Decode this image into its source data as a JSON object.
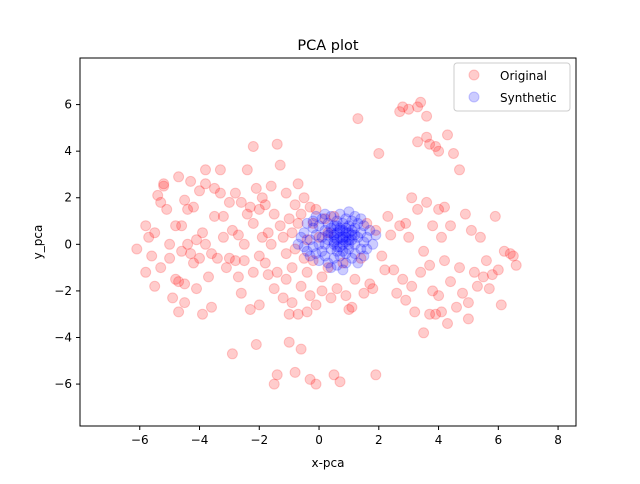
{
  "chart_data": {
    "type": "scatter",
    "title": "PCA plot",
    "xlabel": "x-pca",
    "ylabel": "y_pca",
    "xlim": [
      -8,
      8.6
    ],
    "ylim": [
      -7.8,
      8.0
    ],
    "xticks": [
      -6,
      -4,
      -2,
      0,
      2,
      4,
      6,
      8
    ],
    "yticks": [
      -6,
      -4,
      -2,
      0,
      2,
      4,
      6
    ],
    "grid": false,
    "legend_position": "top-right",
    "series": [
      {
        "name": "Original",
        "color": "#ff0000",
        "alpha": 0.2,
        "points": [
          [
            -6.1,
            -0.2
          ],
          [
            -5.8,
            0.8
          ],
          [
            -5.8,
            -1.2
          ],
          [
            -5.7,
            0.3
          ],
          [
            -5.6,
            -0.5
          ],
          [
            -5.5,
            0.5
          ],
          [
            -5.5,
            -1.8
          ],
          [
            -5.4,
            2.1
          ],
          [
            -5.3,
            -1.0
          ],
          [
            -5.3,
            1.8
          ],
          [
            -5.2,
            2.6
          ],
          [
            -5.2,
            2.5
          ],
          [
            -5.1,
            1.5
          ],
          [
            -5.0,
            0.0
          ],
          [
            -5.0,
            -0.6
          ],
          [
            -4.9,
            -2.3
          ],
          [
            -4.8,
            0.8
          ],
          [
            -4.8,
            -1.5
          ],
          [
            -4.7,
            2.9
          ],
          [
            -4.7,
            -1.6
          ],
          [
            -4.7,
            -2.9
          ],
          [
            -4.6,
            0.8
          ],
          [
            -4.6,
            -0.3
          ],
          [
            -4.5,
            -1.7
          ],
          [
            -4.5,
            -2.5
          ],
          [
            -4.5,
            1.9
          ],
          [
            -4.4,
            1.5
          ],
          [
            -4.4,
            0.0
          ],
          [
            -4.3,
            2.7
          ],
          [
            -4.3,
            -0.4
          ],
          [
            -4.2,
            1.6
          ],
          [
            -4.2,
            -0.8
          ],
          [
            -4.1,
            0.2
          ],
          [
            -4.1,
            -1.9
          ],
          [
            -4.0,
            2.3
          ],
          [
            -4.0,
            -0.6
          ],
          [
            -3.9,
            0.5
          ],
          [
            -3.9,
            -3.0
          ],
          [
            -3.8,
            0.0
          ],
          [
            -3.8,
            3.2
          ],
          [
            -3.8,
            2.6
          ],
          [
            -3.7,
            -1.4
          ],
          [
            -3.6,
            -0.4
          ],
          [
            -3.6,
            -2.7
          ],
          [
            -3.5,
            1.2
          ],
          [
            -3.5,
            2.4
          ],
          [
            -3.4,
            -0.6
          ],
          [
            -3.3,
            3.2
          ],
          [
            -3.3,
            2.2
          ],
          [
            -3.2,
            1.2
          ],
          [
            -3.2,
            0.3
          ],
          [
            -3.1,
            -1.0
          ],
          [
            -3.0,
            1.8
          ],
          [
            -3.0,
            -0.6
          ],
          [
            -2.9,
            -4.7
          ],
          [
            -2.9,
            0.6
          ],
          [
            -2.8,
            2.2
          ],
          [
            -2.8,
            -0.7
          ],
          [
            -2.7,
            -1.4
          ],
          [
            -2.7,
            0.4
          ],
          [
            -2.6,
            1.8
          ],
          [
            -2.6,
            -2.1
          ],
          [
            -2.5,
            0.0
          ],
          [
            -2.5,
            -0.7
          ],
          [
            -2.4,
            3.2
          ],
          [
            -2.4,
            1.3
          ],
          [
            -2.3,
            1.6
          ],
          [
            -2.3,
            -2.8
          ],
          [
            -2.2,
            4.2
          ],
          [
            -2.2,
            0.9
          ],
          [
            -2.2,
            -1.2
          ],
          [
            -2.1,
            -4.3
          ],
          [
            -2.1,
            2.4
          ],
          [
            -2.0,
            -0.5
          ],
          [
            -2.0,
            1.5
          ],
          [
            -2.0,
            -2.6
          ],
          [
            -1.9,
            0.3
          ],
          [
            -1.9,
            2.0
          ],
          [
            -1.8,
            -0.8
          ],
          [
            -1.8,
            1.7
          ],
          [
            -1.7,
            0.5
          ],
          [
            -1.7,
            -1.3
          ],
          [
            -1.6,
            2.5
          ],
          [
            -1.6,
            0.0
          ],
          [
            -1.5,
            1.3
          ],
          [
            -1.5,
            -1.9
          ],
          [
            -1.5,
            -6.0
          ],
          [
            -1.4,
            -5.6
          ],
          [
            -1.4,
            4.3
          ],
          [
            -1.4,
            -1.2
          ],
          [
            -1.3,
            0.8
          ],
          [
            -1.3,
            3.4
          ],
          [
            -1.2,
            -2.3
          ],
          [
            -1.2,
            0.3
          ],
          [
            -1.1,
            -0.4
          ],
          [
            -1.1,
            2.2
          ],
          [
            -1.1,
            -1.5
          ],
          [
            -1.0,
            -4.2
          ],
          [
            -1.0,
            -3.0
          ],
          [
            -1.0,
            1.1
          ],
          [
            -0.9,
            0.5
          ],
          [
            -0.9,
            -1.0
          ],
          [
            -0.9,
            -2.5
          ],
          [
            -0.8,
            1.7
          ],
          [
            -0.8,
            -0.2
          ],
          [
            -0.8,
            -5.5
          ],
          [
            -0.7,
            2.6
          ],
          [
            -0.7,
            -3.0
          ],
          [
            -0.7,
            0.9
          ],
          [
            -0.6,
            1.3
          ],
          [
            -0.6,
            -1.8
          ],
          [
            -0.6,
            -4.5
          ],
          [
            -0.5,
            -0.6
          ],
          [
            -0.5,
            2.0
          ],
          [
            -0.4,
            0.2
          ],
          [
            -0.4,
            -1.2
          ],
          [
            -0.4,
            -2.9
          ],
          [
            -0.3,
            1.6
          ],
          [
            -0.3,
            -2.2
          ],
          [
            -0.3,
            -5.8
          ],
          [
            -0.2,
            0.9
          ],
          [
            -0.2,
            -0.7
          ],
          [
            -0.1,
            -6.0
          ],
          [
            -0.1,
            -2.6
          ],
          [
            -0.1,
            1.5
          ],
          [
            0.0,
            0.3
          ],
          [
            0.1,
            -1.4
          ],
          [
            0.1,
            -2.0
          ],
          [
            0.2,
            1.1
          ],
          [
            0.3,
            -1.0
          ],
          [
            0.3,
            0.5
          ],
          [
            0.4,
            -2.3
          ],
          [
            0.5,
            1.2
          ],
          [
            0.5,
            -5.6
          ],
          [
            0.6,
            -1.9
          ],
          [
            0.7,
            -5.9
          ],
          [
            0.8,
            -0.8
          ],
          [
            0.9,
            -2.2
          ],
          [
            1.0,
            -2.8
          ],
          [
            1.1,
            -2.7
          ],
          [
            1.2,
            -1.5
          ],
          [
            1.3,
            5.4
          ],
          [
            1.4,
            -0.6
          ],
          [
            1.5,
            -2.1
          ],
          [
            1.6,
            0.9
          ],
          [
            1.7,
            -1.7
          ],
          [
            1.8,
            -1.9
          ],
          [
            1.9,
            -5.6
          ],
          [
            1.9,
            0.6
          ],
          [
            2.0,
            3.9
          ],
          [
            2.1,
            -0.5
          ],
          [
            2.2,
            -1.1
          ],
          [
            2.3,
            1.2
          ],
          [
            2.4,
            0.4
          ],
          [
            2.5,
            -1.1
          ],
          [
            2.6,
            -2.1
          ],
          [
            2.7,
            5.7
          ],
          [
            2.7,
            0.8
          ],
          [
            2.8,
            5.9
          ],
          [
            2.8,
            -1.5
          ],
          [
            2.9,
            0.9
          ],
          [
            2.9,
            -2.4
          ],
          [
            3.0,
            5.8
          ],
          [
            3.0,
            0.3
          ],
          [
            3.1,
            2.0
          ],
          [
            3.1,
            -1.8
          ],
          [
            3.2,
            -2.9
          ],
          [
            3.3,
            5.9
          ],
          [
            3.3,
            4.4
          ],
          [
            3.3,
            1.5
          ],
          [
            3.4,
            6.1
          ],
          [
            3.4,
            -1.2
          ],
          [
            3.5,
            -0.3
          ],
          [
            3.5,
            -3.8
          ],
          [
            3.6,
            5.5
          ],
          [
            3.6,
            4.6
          ],
          [
            3.6,
            1.8
          ],
          [
            3.7,
            -3.0
          ],
          [
            3.7,
            -0.9
          ],
          [
            3.7,
            4.3
          ],
          [
            3.8,
            0.8
          ],
          [
            3.8,
            -2.0
          ],
          [
            3.9,
            4.2
          ],
          [
            3.9,
            -3.0
          ],
          [
            4.0,
            1.5
          ],
          [
            4.0,
            4.0
          ],
          [
            4.0,
            -2.2
          ],
          [
            4.1,
            0.3
          ],
          [
            4.1,
            -2.9
          ],
          [
            4.2,
            1.6
          ],
          [
            4.2,
            -0.7
          ],
          [
            4.3,
            4.7
          ],
          [
            4.3,
            -3.4
          ],
          [
            4.4,
            0.8
          ],
          [
            4.4,
            -1.6
          ],
          [
            4.5,
            3.9
          ],
          [
            4.6,
            -2.7
          ],
          [
            4.7,
            -1.0
          ],
          [
            4.7,
            3.2
          ],
          [
            4.8,
            -2.1
          ],
          [
            4.9,
            1.3
          ],
          [
            5.0,
            -3.2
          ],
          [
            5.0,
            -2.5
          ],
          [
            5.1,
            0.6
          ],
          [
            5.2,
            -1.2
          ],
          [
            5.3,
            -1.8
          ],
          [
            5.4,
            0.3
          ],
          [
            5.5,
            -1.4
          ],
          [
            5.6,
            -0.7
          ],
          [
            5.7,
            -1.9
          ],
          [
            5.8,
            -1.3
          ],
          [
            5.9,
            1.2
          ],
          [
            6.0,
            -1.1
          ],
          [
            6.1,
            -2.6
          ],
          [
            6.2,
            -0.3
          ],
          [
            6.4,
            -0.4
          ],
          [
            6.5,
            -0.5
          ],
          [
            6.6,
            -0.9
          ]
        ]
      },
      {
        "name": "Synthetic",
        "color": "#0000ff",
        "alpha": 0.2,
        "points": [
          [
            -0.7,
            0.0
          ],
          [
            -0.6,
            0.3
          ],
          [
            -0.5,
            -0.1
          ],
          [
            -0.5,
            0.5
          ],
          [
            -0.4,
            0.9
          ],
          [
            -0.4,
            -0.3
          ],
          [
            -0.3,
            0.2
          ],
          [
            -0.3,
            -0.5
          ],
          [
            -0.2,
            0.7
          ],
          [
            -0.2,
            1.0
          ],
          [
            -0.2,
            -0.1
          ],
          [
            -0.1,
            0.4
          ],
          [
            -0.1,
            -0.4
          ],
          [
            -0.1,
            1.2
          ],
          [
            0.0,
            0.0
          ],
          [
            0.0,
            0.8
          ],
          [
            0.0,
            -0.7
          ],
          [
            0.1,
            0.3
          ],
          [
            0.1,
            1.1
          ],
          [
            0.1,
            -0.3
          ],
          [
            0.2,
            0.6
          ],
          [
            0.2,
            -0.5
          ],
          [
            0.2,
            1.3
          ],
          [
            0.2,
            0.0
          ],
          [
            0.3,
            0.9
          ],
          [
            0.3,
            -0.8
          ],
          [
            0.3,
            0.2
          ],
          [
            0.4,
            0.5
          ],
          [
            0.4,
            -0.2
          ],
          [
            0.4,
            1.2
          ],
          [
            0.4,
            -1.0
          ],
          [
            0.5,
            0.0
          ],
          [
            0.5,
            0.8
          ],
          [
            0.5,
            -0.6
          ],
          [
            0.5,
            0.4
          ],
          [
            0.6,
            1.0
          ],
          [
            0.6,
            -0.3
          ],
          [
            0.6,
            0.2
          ],
          [
            0.6,
            -0.9
          ],
          [
            0.7,
            0.6
          ],
          [
            0.7,
            -0.1
          ],
          [
            0.7,
            1.3
          ],
          [
            0.7,
            -0.5
          ],
          [
            0.8,
            0.3
          ],
          [
            0.8,
            0.9
          ],
          [
            0.8,
            -1.1
          ],
          [
            0.8,
            0.0
          ],
          [
            0.9,
            0.5
          ],
          [
            0.9,
            -0.4
          ],
          [
            0.9,
            1.1
          ],
          [
            0.9,
            -0.8
          ],
          [
            1.0,
            0.2
          ],
          [
            1.0,
            0.8
          ],
          [
            1.0,
            -0.2
          ],
          [
            1.0,
            1.4
          ],
          [
            1.1,
            0.4
          ],
          [
            1.1,
            -0.6
          ],
          [
            1.1,
            1.0
          ],
          [
            1.2,
            0.0
          ],
          [
            1.2,
            0.7
          ],
          [
            1.2,
            -0.4
          ],
          [
            1.2,
            1.2
          ],
          [
            1.3,
            0.3
          ],
          [
            1.3,
            -0.8
          ],
          [
            1.3,
            0.9
          ],
          [
            1.4,
            -0.2
          ],
          [
            1.4,
            0.5
          ],
          [
            1.4,
            1.1
          ],
          [
            1.5,
            0.1
          ],
          [
            1.5,
            -0.5
          ],
          [
            1.5,
            0.8
          ],
          [
            1.6,
            0.3
          ],
          [
            1.6,
            -0.2
          ],
          [
            1.7,
            0.6
          ],
          [
            1.8,
            0.0
          ],
          [
            1.9,
            0.4
          ],
          [
            0.3,
            0.4
          ],
          [
            0.5,
            0.1
          ],
          [
            0.6,
            0.5
          ],
          [
            0.7,
            0.3
          ],
          [
            0.8,
            0.6
          ],
          [
            0.9,
            0.1
          ],
          [
            1.0,
            0.5
          ],
          [
            1.1,
            0.2
          ],
          [
            0.4,
            0.7
          ],
          [
            0.6,
            0.8
          ],
          [
            0.8,
            0.2
          ],
          [
            0.9,
            0.7
          ],
          [
            1.0,
            0.0
          ],
          [
            1.1,
            0.6
          ],
          [
            0.5,
            0.3
          ],
          [
            0.7,
            0.7
          ],
          [
            0.8,
            -0.3
          ],
          [
            0.6,
            -0.1
          ],
          [
            1.2,
            0.4
          ],
          [
            0.9,
            0.3
          ]
        ]
      }
    ]
  }
}
